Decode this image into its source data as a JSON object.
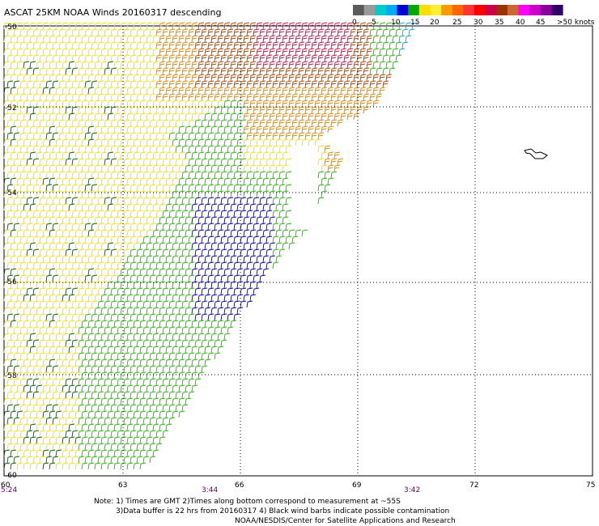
{
  "title": "ASCAT 25KM NOAA Winds 20160317 descending",
  "legend": {
    "unit_label": ">50 knots",
    "labels": [
      "0",
      "5",
      "10",
      "15",
      "20",
      "25",
      "30",
      "35",
      "40",
      "45"
    ],
    "colors": [
      "#5a5a5a",
      "#9a9a9a",
      "#00cccc",
      "#00aaff",
      "#0000dd",
      "#00aa00",
      "#ffdd00",
      "#ffee33",
      "#ff9900",
      "#ff6600",
      "#ff3333",
      "#ff0000",
      "#cc0044",
      "#993300",
      "#cc6633",
      "#ff00ff",
      "#cc00cc",
      "#880099",
      "#330066"
    ]
  },
  "axes": {
    "lat_labels": [
      "-50",
      "-52",
      "-54",
      "-56",
      "-58",
      "-60"
    ],
    "lon_labels": [
      "60",
      "63",
      "66",
      "69",
      "72",
      "75"
    ]
  },
  "time_labels": [
    "5:24",
    "3:44",
    "3:42"
  ],
  "footer": {
    "line1": "Note: 1) Times are GMT 2)Times along bottom correspond to measurement at ~55S",
    "line2": "3)Data buffer is 22 hrs from 20160317 4) Black wind barbs indicate possible contamination",
    "line3": "NOAA/NESDIS/Center for Satellite Applications and Research"
  },
  "barb_colors": {
    "yellow": "#f2e000",
    "green": "#22bb00",
    "darkgreen": "#006600",
    "blue": "#0000cc",
    "orange": "#dd8800",
    "brown": "#b24400",
    "red": "#cc1144",
    "cyan": "#00aaee"
  }
}
